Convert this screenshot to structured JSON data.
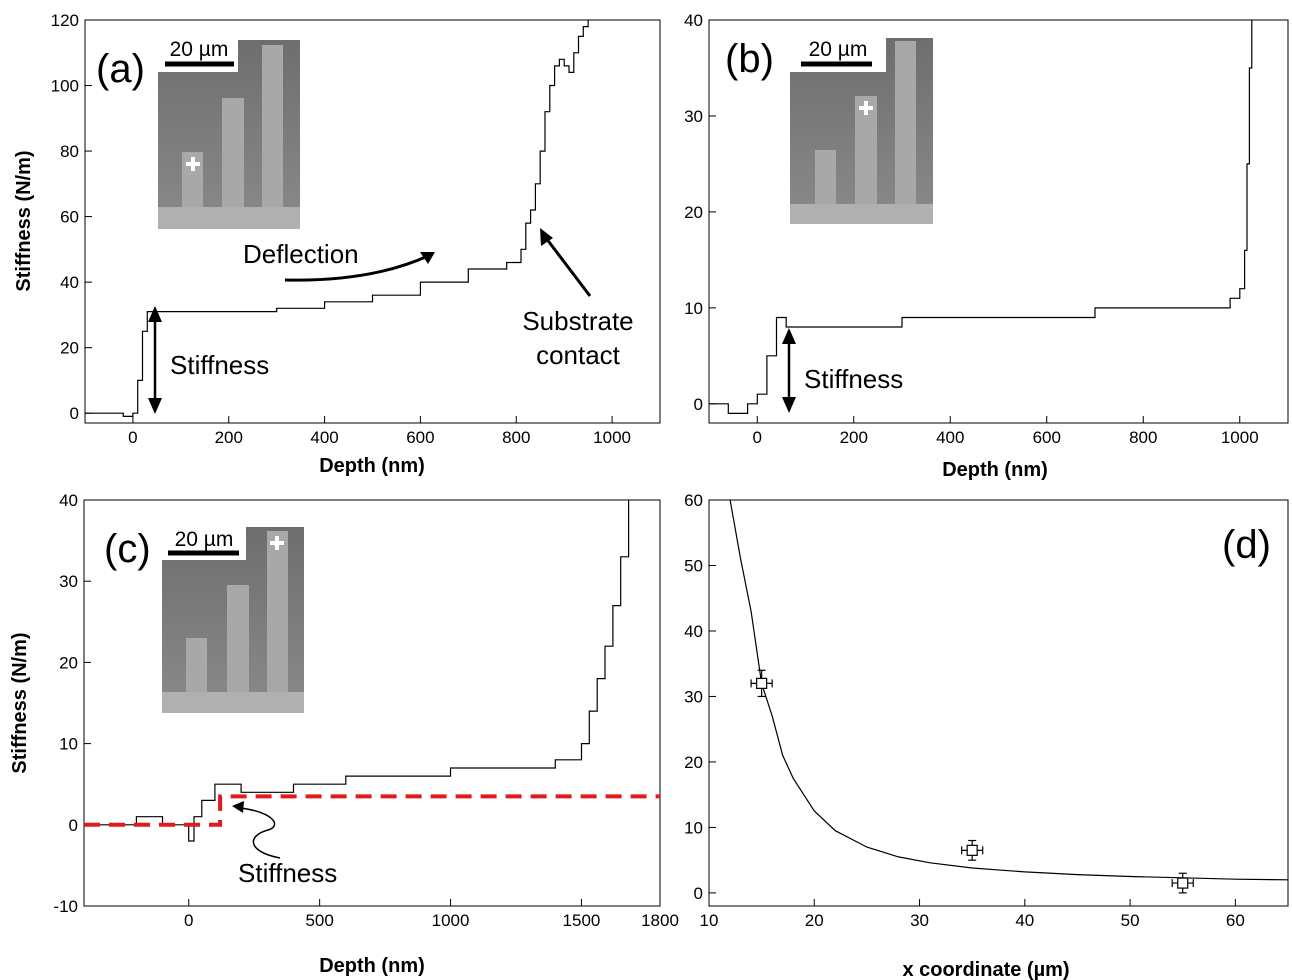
{
  "chart_data": [
    {
      "panel": "(a)",
      "type": "line",
      "xlabel": "Depth (nm)",
      "ylabel": "Stiffness (N/m)",
      "xlim": [
        -100,
        1100
      ],
      "ylim": [
        -3,
        120
      ],
      "xticks": [
        0,
        200,
        400,
        600,
        800,
        1000
      ],
      "yticks": [
        0,
        20,
        40,
        60,
        80,
        100,
        120
      ],
      "scale_bar": "20 µm",
      "annotations": [
        "Deflection",
        "Stiffness",
        "Substrate",
        "contact"
      ],
      "series": [
        {
          "x": [
            -100,
            -60,
            -20,
            0,
            10,
            20,
            30,
            40,
            80,
            120,
            200,
            300,
            400,
            500,
            600,
            700,
            780,
            810,
            820,
            830,
            840,
            850,
            860,
            870,
            880,
            890,
            900,
            910,
            920,
            930,
            940,
            950
          ],
          "y": [
            0,
            0,
            -1,
            0,
            10,
            25,
            31,
            31,
            31,
            31,
            31,
            32,
            34,
            36,
            40,
            44,
            46,
            50,
            58,
            62,
            70,
            80,
            92,
            100,
            106,
            108,
            106,
            104,
            110,
            115,
            118,
            120
          ]
        }
      ]
    },
    {
      "panel": "(b)",
      "type": "line",
      "xlabel": "Depth (nm)",
      "ylabel": "",
      "xlim": [
        -100,
        1100
      ],
      "ylim": [
        -2,
        40
      ],
      "xticks": [
        0,
        200,
        400,
        600,
        800,
        1000
      ],
      "yticks": [
        0,
        10,
        20,
        30,
        40
      ],
      "scale_bar": "20 µm",
      "annotations": [
        "Stiffness"
      ],
      "series": [
        {
          "x": [
            -100,
            -60,
            -20,
            0,
            20,
            40,
            60,
            100,
            200,
            300,
            400,
            500,
            600,
            700,
            800,
            900,
            980,
            1000,
            1010,
            1015,
            1020,
            1025
          ],
          "y": [
            0,
            -1,
            0,
            1,
            5,
            9,
            8,
            8,
            8,
            9,
            9,
            9,
            9,
            10,
            10,
            10,
            11,
            12,
            16,
            25,
            35,
            40
          ]
        }
      ]
    },
    {
      "panel": "(c)",
      "type": "line",
      "xlabel": "Depth (nm)",
      "ylabel": "Stiffness (N/m)",
      "xlim": [
        -400,
        1800
      ],
      "ylim": [
        -10,
        40
      ],
      "xticks": [
        0,
        500,
        1000,
        1500,
        1800
      ],
      "yticks": [
        -10,
        0,
        10,
        20,
        30,
        40
      ],
      "scale_bar": "20 µm",
      "annotations": [
        "Stiffness"
      ],
      "series": [
        {
          "x": [
            -400,
            -300,
            -200,
            -100,
            -20,
            0,
            20,
            50,
            100,
            200,
            300,
            400,
            500,
            600,
            800,
            1000,
            1200,
            1400,
            1480,
            1500,
            1530,
            1560,
            1590,
            1620,
            1650,
            1680
          ],
          "y": [
            0,
            0,
            1,
            0,
            0,
            -2,
            1,
            3,
            5,
            4,
            4,
            5,
            5,
            6,
            6,
            7,
            7,
            8,
            8,
            10,
            14,
            18,
            22,
            27,
            33,
            40
          ]
        },
        {
          "x": [
            -400,
            120,
            120,
            1800
          ],
          "y": [
            0,
            0,
            3.5,
            3.5
          ],
          "style": "dashed"
        }
      ]
    },
    {
      "panel": "(d)",
      "type": "scatter",
      "xlabel": "x coordinate (µm)",
      "ylabel": "",
      "xlim": [
        10,
        65
      ],
      "ylim": [
        -2,
        60
      ],
      "xticks": [
        10,
        20,
        30,
        40,
        50,
        60
      ],
      "yticks": [
        0,
        10,
        20,
        30,
        40,
        50,
        60
      ],
      "points": [
        {
          "x": 15,
          "y": 32,
          "xerr": 1,
          "yerr": 2
        },
        {
          "x": 35,
          "y": 6.5,
          "xerr": 1,
          "yerr": 1.5
        },
        {
          "x": 55,
          "y": 1.5,
          "xerr": 1,
          "yerr": 1.5
        }
      ],
      "fit": {
        "x": [
          12,
          13,
          14,
          15,
          16,
          17,
          18,
          20,
          22,
          25,
          28,
          31,
          35,
          40,
          45,
          50,
          55,
          60,
          65
        ],
        "y": [
          60,
          51,
          43,
          32,
          27,
          21,
          17.5,
          12.5,
          9.5,
          7,
          5.5,
          4.6,
          3.8,
          3.2,
          2.8,
          2.5,
          2.3,
          2.1,
          2
        ]
      }
    }
  ]
}
